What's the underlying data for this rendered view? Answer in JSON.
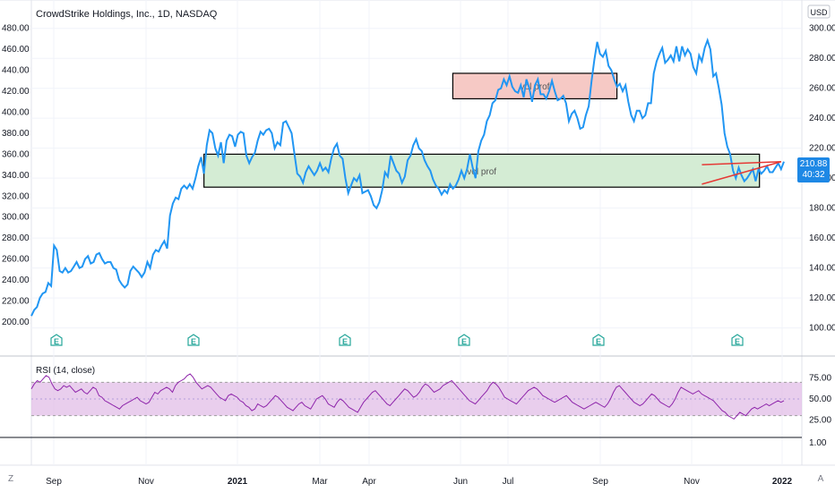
{
  "chart_data": {
    "type": "line",
    "title": "CrowdStrike Holdings, Inc., 1D, NASDAQ",
    "currency": "USD",
    "left_axis": {
      "ticks": [
        480,
        460,
        440,
        420,
        400,
        380,
        360,
        340,
        320,
        300,
        280,
        260,
        240,
        220,
        200
      ],
      "labels": [
        "480.00",
        "460.00",
        "440.00",
        "420.00",
        "400.00",
        "380.00",
        "360.00",
        "340.00",
        "320.00",
        "300.00",
        "280.00",
        "260.00",
        "240.00",
        "220.00",
        "200.00"
      ]
    },
    "right_axis": {
      "ticks": [
        300,
        280,
        260,
        240,
        220,
        200,
        180,
        160,
        140,
        120,
        100
      ],
      "labels": [
        "300.00",
        "280.00",
        "260.00",
        "240.00",
        "220.00",
        "200.00",
        "180.00",
        "160.00",
        "140.00",
        "120.00",
        "100.00"
      ],
      "ylim": [
        92,
        307
      ]
    },
    "x_ticks": [
      "Sep",
      "Nov",
      "2021",
      "Mar",
      "Apr",
      "Jun",
      "Jul",
      "Sep",
      "Nov",
      "2022"
    ],
    "last_price": {
      "value": "210.88",
      "countdown": "40:32"
    },
    "series": [
      {
        "values": [
          108,
          112,
          114,
          120,
          123,
          124,
          130,
          128,
          155,
          152,
          138,
          137,
          140,
          137,
          138,
          141,
          144,
          140,
          141,
          146,
          148,
          143,
          144,
          149,
          150,
          146,
          143,
          144,
          144,
          140,
          139,
          132,
          129,
          127,
          129,
          138,
          141,
          139,
          137,
          134,
          137,
          144,
          140,
          149,
          152,
          151,
          155,
          158,
          153,
          175,
          183,
          187,
          186,
          193,
          195,
          193,
          196,
          193,
          200,
          208,
          214,
          203,
          222,
          232,
          230,
          220,
          215,
          224,
          210,
          225,
          229,
          228,
          221,
          229,
          231,
          230,
          215,
          210,
          214,
          217,
          225,
          231,
          229,
          232,
          233,
          230,
          220,
          224,
          222,
          237,
          238,
          234,
          230,
          216,
          203,
          201,
          197,
          204,
          208,
          205,
          202,
          205,
          210,
          205,
          207,
          204,
          213,
          220,
          223,
          215,
          213,
          200,
          190,
          195,
          200,
          198,
          202,
          190,
          191,
          192,
          188,
          182,
          180,
          184,
          192,
          204,
          201,
          215,
          210,
          205,
          203,
          197,
          201,
          212,
          215,
          222,
          226,
          220,
          218,
          212,
          208,
          205,
          199,
          195,
          193,
          189,
          192,
          190,
          196,
          193,
          195,
          199,
          205,
          200,
          206,
          216,
          207,
          200,
          218,
          225,
          229,
          238,
          242,
          250,
          252,
          259,
          260,
          266,
          262,
          268,
          261,
          258,
          257,
          262,
          254,
          266,
          260,
          251,
          262,
          266,
          256,
          256,
          253,
          258,
          265,
          258,
          252,
          253,
          255,
          250,
          238,
          243,
          245,
          240,
          233,
          234,
          242,
          248,
          265,
          279,
          291,
          283,
          281,
          285,
          275,
          272,
          266,
          261,
          263,
          258,
          262,
          251,
          242,
          238,
          245,
          245,
          240,
          242,
          250,
          250,
          270,
          278,
          283,
          287,
          277,
          279,
          282,
          278,
          288,
          278,
          288,
          282,
          286,
          283,
          274,
          270,
          282,
          278,
          287,
          292,
          286,
          268,
          270,
          260,
          249,
          230,
          221,
          216,
          205,
          200,
          207,
          202,
          198,
          200,
          203,
          206,
          198,
          206,
          203,
          205,
          208,
          204,
          204,
          207,
          210,
          206,
          211
        ]
      }
    ],
    "rsi": {
      "label": "RSI (14, close)",
      "ticks": [
        "75.00",
        "50.00",
        "25.00"
      ],
      "band": [
        30,
        70
      ],
      "bottom_label": "1.00",
      "values": [
        62,
        68,
        72,
        70,
        74,
        78,
        76,
        68,
        62,
        60,
        62,
        66,
        64,
        66,
        62,
        58,
        60,
        62,
        58,
        56,
        60,
        64,
        62,
        54,
        52,
        48,
        46,
        44,
        42,
        40,
        38,
        42,
        44,
        46,
        48,
        50,
        52,
        48,
        46,
        44,
        46,
        52,
        58,
        56,
        60,
        62,
        64,
        62,
        58,
        66,
        70,
        72,
        74,
        78,
        80,
        76,
        70,
        66,
        62,
        64,
        66,
        64,
        60,
        56,
        52,
        50,
        48,
        54,
        56,
        54,
        52,
        48,
        46,
        42,
        40,
        36,
        38,
        44,
        42,
        40,
        42,
        46,
        50,
        54,
        52,
        48,
        44,
        40,
        38,
        36,
        40,
        44,
        46,
        42,
        40,
        38,
        44,
        50,
        52,
        54,
        50,
        44,
        42,
        40,
        46,
        50,
        48,
        44,
        40,
        38,
        36,
        34,
        40,
        46,
        50,
        54,
        58,
        60,
        56,
        52,
        48,
        44,
        42,
        46,
        50,
        54,
        58,
        62,
        60,
        56,
        52,
        54,
        58,
        64,
        68,
        66,
        62,
        58,
        60,
        62,
        66,
        68,
        70,
        72,
        68,
        64,
        60,
        56,
        52,
        48,
        46,
        44,
        48,
        52,
        56,
        60,
        66,
        70,
        68,
        64,
        58,
        52,
        50,
        48,
        46,
        44,
        48,
        52,
        56,
        60,
        62,
        64,
        62,
        58,
        54,
        52,
        50,
        48,
        46,
        48,
        50,
        52,
        54,
        50,
        46,
        44,
        42,
        40,
        38,
        40,
        42,
        44,
        46,
        44,
        42,
        40,
        44,
        50,
        58,
        64,
        66,
        62,
        58,
        54,
        50,
        46,
        44,
        42,
        44,
        48,
        52,
        56,
        54,
        50,
        46,
        44,
        42,
        40,
        44,
        50,
        58,
        64,
        62,
        60,
        58,
        56,
        58,
        60,
        56,
        54,
        52,
        50,
        48,
        44,
        40,
        36,
        34,
        30,
        28,
        26,
        30,
        34,
        32,
        30,
        34,
        38,
        40,
        38,
        40,
        42,
        44,
        42,
        44,
        46,
        48,
        46,
        48
      ]
    },
    "rectangles": [
      {
        "label": "vol prof",
        "color": "#f6c9c5",
        "x0": 0.547,
        "x1": 0.76,
        "y0": 253,
        "y1": 270
      },
      {
        "label": "vol prof",
        "color": "#d4ecd4",
        "x0": 0.224,
        "x1": 0.945,
        "y0": 194,
        "y1": 216
      }
    ],
    "earnings_markers": [
      "E",
      "E",
      "E",
      "E",
      "E",
      "E"
    ],
    "bottom_bar": {
      "left": "Z",
      "right": "A"
    }
  }
}
